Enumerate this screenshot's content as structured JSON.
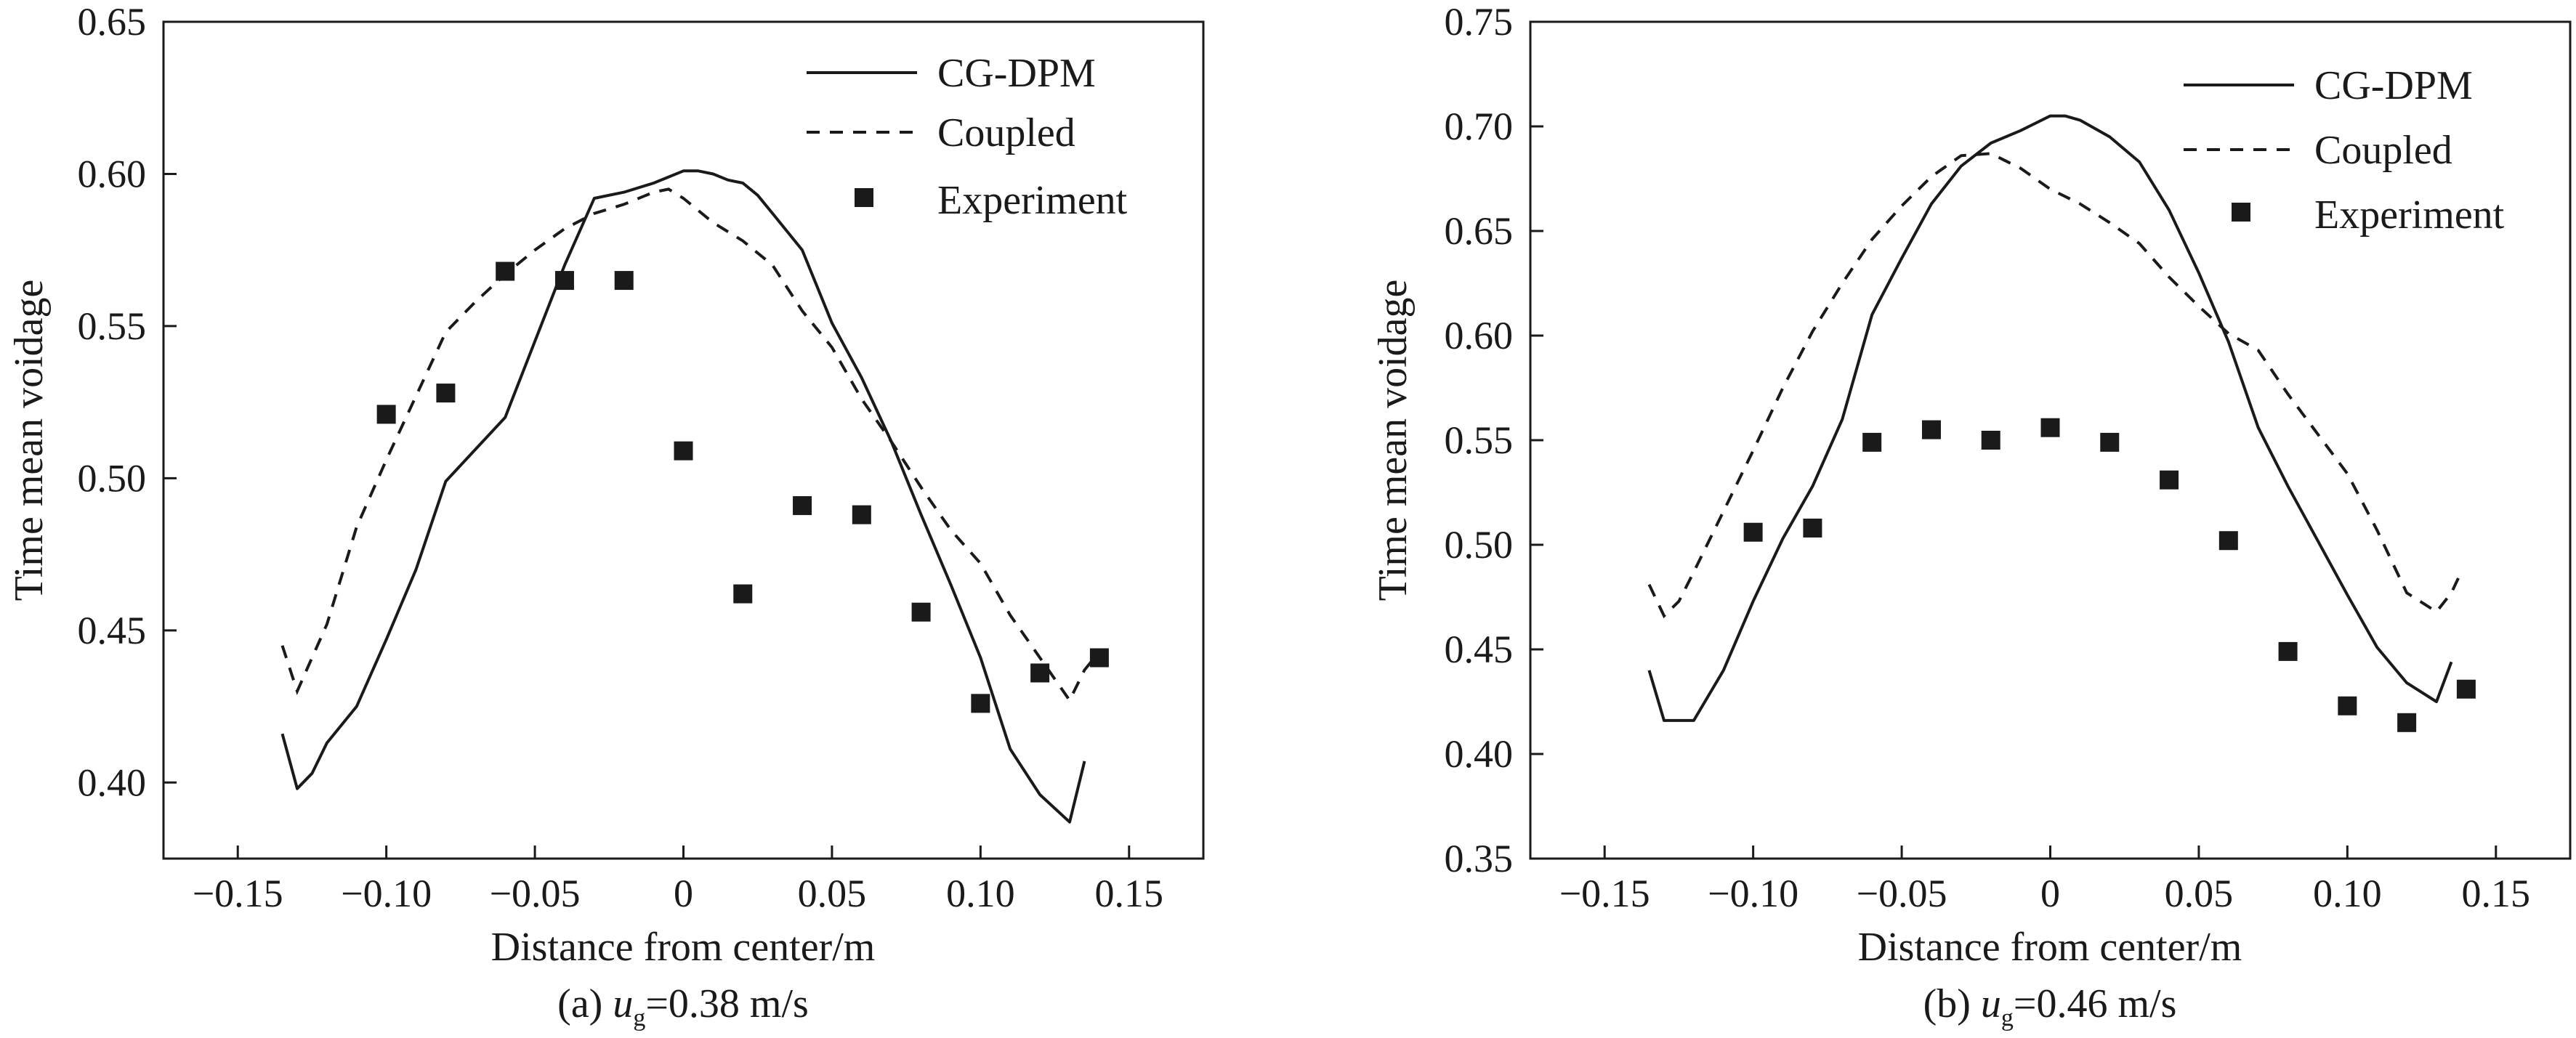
{
  "figure": {
    "type": "chart"
  },
  "chart_data": [
    {
      "type": "line",
      "panel": "a",
      "caption_prefix": "(a) ",
      "caption_symbol": "u",
      "caption_subscript": "g",
      "caption_suffix": "=0.38 m/s",
      "xlabel": "Distance from center/m",
      "ylabel": "Time mean voidage",
      "xlim": [
        -0.175,
        0.175
      ],
      "ylim": [
        0.375,
        0.65
      ],
      "xticks": [
        -0.15,
        -0.1,
        -0.05,
        0,
        0.05,
        0.1,
        0.15
      ],
      "xtick_labels": [
        "−0.15",
        "−0.10",
        "−0.05",
        "0",
        "0.05",
        "0.10",
        "0.15"
      ],
      "yticks": [
        0.4,
        0.45,
        0.5,
        0.55,
        0.6,
        0.65
      ],
      "ytick_labels": [
        "0.40",
        "0.45",
        "0.50",
        "0.55",
        "0.60",
        "0.65"
      ],
      "legend_position": "top-right",
      "series": [
        {
          "name": "CG-DPM",
          "style": "solid",
          "points": [
            [
              -0.135,
              0.416
            ],
            [
              -0.13,
              0.398
            ],
            [
              -0.125,
              0.403
            ],
            [
              -0.12,
              0.413
            ],
            [
              -0.11,
              0.425
            ],
            [
              -0.1,
              0.447
            ],
            [
              -0.09,
              0.47
            ],
            [
              -0.08,
              0.499
            ],
            [
              -0.06,
              0.52
            ],
            [
              -0.05,
              0.545
            ],
            [
              -0.04,
              0.57
            ],
            [
              -0.03,
              0.592
            ],
            [
              -0.02,
              0.594
            ],
            [
              -0.01,
              0.597
            ],
            [
              0,
              0.601
            ],
            [
              0.005,
              0.601
            ],
            [
              0.01,
              0.6
            ],
            [
              0.015,
              0.598
            ],
            [
              0.02,
              0.597
            ],
            [
              0.025,
              0.593
            ],
            [
              0.03,
              0.587
            ],
            [
              0.04,
              0.575
            ],
            [
              0.05,
              0.551
            ],
            [
              0.06,
              0.533
            ],
            [
              0.07,
              0.512
            ],
            [
              0.08,
              0.488
            ],
            [
              0.09,
              0.465
            ],
            [
              0.1,
              0.441
            ],
            [
              0.11,
              0.411
            ],
            [
              0.12,
              0.396
            ],
            [
              0.13,
              0.387
            ],
            [
              0.135,
              0.407
            ]
          ]
        },
        {
          "name": "Coupled",
          "style": "dashed",
          "points": [
            [
              -0.135,
              0.445
            ],
            [
              -0.13,
              0.43
            ],
            [
              -0.125,
              0.441
            ],
            [
              -0.12,
              0.452
            ],
            [
              -0.11,
              0.484
            ],
            [
              -0.1,
              0.506
            ],
            [
              -0.09,
              0.527
            ],
            [
              -0.08,
              0.548
            ],
            [
              -0.07,
              0.558
            ],
            [
              -0.06,
              0.567
            ],
            [
              -0.05,
              0.575
            ],
            [
              -0.04,
              0.582
            ],
            [
              -0.03,
              0.587
            ],
            [
              -0.02,
              0.59
            ],
            [
              -0.01,
              0.594
            ],
            [
              -0.005,
              0.595
            ],
            [
              0,
              0.592
            ],
            [
              0.01,
              0.584
            ],
            [
              0.02,
              0.578
            ],
            [
              0.03,
              0.57
            ],
            [
              0.04,
              0.555
            ],
            [
              0.05,
              0.543
            ],
            [
              0.06,
              0.526
            ],
            [
              0.07,
              0.512
            ],
            [
              0.08,
              0.497
            ],
            [
              0.09,
              0.483
            ],
            [
              0.1,
              0.472
            ],
            [
              0.11,
              0.455
            ],
            [
              0.12,
              0.441
            ],
            [
              0.13,
              0.427
            ],
            [
              0.135,
              0.437
            ],
            [
              0.14,
              0.443
            ]
          ]
        },
        {
          "name": "Experiment",
          "style": "marker",
          "points": [
            [
              -0.1,
              0.521
            ],
            [
              -0.08,
              0.528
            ],
            [
              -0.06,
              0.568
            ],
            [
              -0.04,
              0.565
            ],
            [
              -0.02,
              0.565
            ],
            [
              0,
              0.509
            ],
            [
              0.02,
              0.462
            ],
            [
              0.04,
              0.491
            ],
            [
              0.06,
              0.488
            ],
            [
              0.08,
              0.456
            ],
            [
              0.1,
              0.426
            ],
            [
              0.12,
              0.436
            ],
            [
              0.14,
              0.441
            ]
          ]
        }
      ]
    },
    {
      "type": "line",
      "panel": "b",
      "caption_prefix": "(b) ",
      "caption_symbol": "u",
      "caption_subscript": "g",
      "caption_suffix": "=0.46 m/s",
      "xlabel": "Distance from center/m",
      "ylabel": "Time mean voidage",
      "xlim": [
        -0.175,
        0.175
      ],
      "ylim": [
        0.35,
        0.75
      ],
      "xticks": [
        -0.15,
        -0.1,
        -0.05,
        0,
        0.05,
        0.1,
        0.15
      ],
      "xtick_labels": [
        "−0.15",
        "−0.10",
        "−0.05",
        "0",
        "0.05",
        "0.10",
        "0.15"
      ],
      "yticks": [
        0.35,
        0.4,
        0.45,
        0.5,
        0.55,
        0.6,
        0.65,
        0.7,
        0.75
      ],
      "ytick_labels": [
        "0.35",
        "0.40",
        "0.45",
        "0.50",
        "0.55",
        "0.60",
        "0.65",
        "0.70",
        "0.75"
      ],
      "legend_position": "top-right",
      "series": [
        {
          "name": "CG-DPM",
          "style": "solid",
          "points": [
            [
              -0.135,
              0.44
            ],
            [
              -0.13,
              0.416
            ],
            [
              -0.12,
              0.416
            ],
            [
              -0.11,
              0.44
            ],
            [
              -0.1,
              0.473
            ],
            [
              -0.09,
              0.503
            ],
            [
              -0.08,
              0.528
            ],
            [
              -0.07,
              0.56
            ],
            [
              -0.06,
              0.61
            ],
            [
              -0.05,
              0.637
            ],
            [
              -0.04,
              0.663
            ],
            [
              -0.03,
              0.681
            ],
            [
              -0.02,
              0.692
            ],
            [
              -0.01,
              0.698
            ],
            [
              0,
              0.705
            ],
            [
              0.005,
              0.705
            ],
            [
              0.01,
              0.703
            ],
            [
              0.02,
              0.695
            ],
            [
              0.03,
              0.683
            ],
            [
              0.04,
              0.66
            ],
            [
              0.05,
              0.63
            ],
            [
              0.06,
              0.597
            ],
            [
              0.07,
              0.556
            ],
            [
              0.08,
              0.528
            ],
            [
              0.09,
              0.502
            ],
            [
              0.1,
              0.476
            ],
            [
              0.11,
              0.451
            ],
            [
              0.12,
              0.434
            ],
            [
              0.13,
              0.425
            ],
            [
              0.135,
              0.444
            ]
          ]
        },
        {
          "name": "Coupled",
          "style": "dashed",
          "points": [
            [
              -0.135,
              0.481
            ],
            [
              -0.13,
              0.466
            ],
            [
              -0.125,
              0.473
            ],
            [
              -0.12,
              0.487
            ],
            [
              -0.11,
              0.516
            ],
            [
              -0.1,
              0.545
            ],
            [
              -0.09,
              0.575
            ],
            [
              -0.08,
              0.602
            ],
            [
              -0.07,
              0.625
            ],
            [
              -0.06,
              0.646
            ],
            [
              -0.05,
              0.662
            ],
            [
              -0.04,
              0.676
            ],
            [
              -0.03,
              0.686
            ],
            [
              -0.02,
              0.687
            ],
            [
              -0.01,
              0.68
            ],
            [
              0,
              0.67
            ],
            [
              0.01,
              0.663
            ],
            [
              0.02,
              0.654
            ],
            [
              0.03,
              0.644
            ],
            [
              0.04,
              0.628
            ],
            [
              0.05,
              0.614
            ],
            [
              0.06,
              0.601
            ],
            [
              0.07,
              0.593
            ],
            [
              0.08,
              0.572
            ],
            [
              0.09,
              0.553
            ],
            [
              0.1,
              0.534
            ],
            [
              0.11,
              0.507
            ],
            [
              0.12,
              0.477
            ],
            [
              0.13,
              0.468
            ],
            [
              0.135,
              0.477
            ],
            [
              0.138,
              0.486
            ]
          ]
        },
        {
          "name": "Experiment",
          "style": "marker",
          "points": [
            [
              -0.1,
              0.506
            ],
            [
              -0.08,
              0.508
            ],
            [
              -0.06,
              0.549
            ],
            [
              -0.04,
              0.555
            ],
            [
              -0.02,
              0.55
            ],
            [
              0,
              0.556
            ],
            [
              0.02,
              0.549
            ],
            [
              0.04,
              0.531
            ],
            [
              0.06,
              0.502
            ],
            [
              0.08,
              0.449
            ],
            [
              0.1,
              0.423
            ],
            [
              0.12,
              0.415
            ],
            [
              0.14,
              0.431
            ]
          ]
        }
      ]
    }
  ]
}
